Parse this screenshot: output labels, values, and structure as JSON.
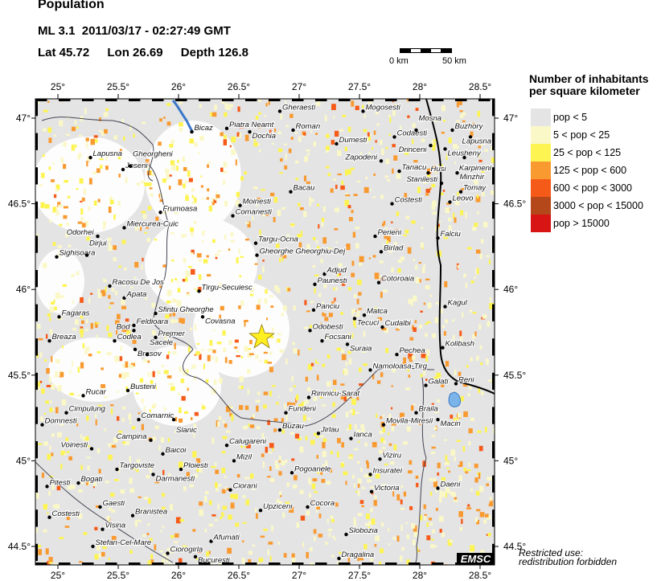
{
  "title": "Population",
  "event": {
    "magnitude": "ML 3.1",
    "datetime": "2011/03/17 - 02:27:49 GMT",
    "lat_label": "Lat 45.72",
    "lon_label": "Lon  26.69",
    "depth_label": "Depth 126.8",
    "lat": 45.72,
    "lon": 26.69
  },
  "scale": {
    "start_label": "0 km",
    "end_label": "50 km"
  },
  "map": {
    "lon_range": [
      24.81,
      28.62
    ],
    "lat_range": [
      44.39,
      47.11
    ],
    "lon_ticks": [
      "25°",
      "25.5°",
      "26°",
      "26.5°",
      "27°",
      "27.5°",
      "28°",
      "28.5°"
    ],
    "lon_tick_values": [
      25,
      25.5,
      26,
      26.5,
      27,
      27.5,
      28,
      28.5
    ],
    "lat_ticks": [
      "47°",
      "46.5°",
      "46°",
      "45.5°",
      "45°",
      "44.5°"
    ],
    "lat_tick_values": [
      47,
      46.5,
      46,
      45.5,
      45,
      44.5
    ],
    "epicenter_marker": "star-icon",
    "epicenter_color": "#ffee22",
    "cities": [
      {
        "name": "Lapusna",
        "lon": 25.27,
        "lat": 46.77
      },
      {
        "name": "Joseni",
        "lon": 25.54,
        "lat": 46.7
      },
      {
        "name": "Gheorgheni",
        "lon": 25.6,
        "lat": 46.72
      },
      {
        "name": "Bicaz",
        "lon": 26.11,
        "lat": 46.92
      },
      {
        "name": "Piatra Neamt",
        "lon": 26.4,
        "lat": 46.94
      },
      {
        "name": "Dochia",
        "lon": 26.59,
        "lat": 46.92
      },
      {
        "name": "Gheraesti",
        "lon": 26.84,
        "lat": 47.04
      },
      {
        "name": "Roman",
        "lon": 26.95,
        "lat": 46.93
      },
      {
        "name": "Mogosesti",
        "lon": 27.53,
        "lat": 47.04
      },
      {
        "name": "Dumesti",
        "lon": 27.31,
        "lat": 46.85
      },
      {
        "name": "Codaesti",
        "lon": 27.79,
        "lat": 46.89
      },
      {
        "name": "Mosna",
        "lon": 27.97,
        "lat": 46.93
      },
      {
        "name": "Buzhory",
        "lon": 28.27,
        "lat": 46.93
      },
      {
        "name": "Lapusna",
        "lon": 28.42,
        "lat": 46.89
      },
      {
        "name": "Drinceni",
        "lon": 28.09,
        "lat": 46.84
      },
      {
        "name": "Leusheny",
        "lon": 28.21,
        "lat": 46.82
      },
      {
        "name": "Karpineni",
        "lon": 28.37,
        "lat": 46.77
      },
      {
        "name": "Zapodeni",
        "lon": 27.68,
        "lat": 46.75
      },
      {
        "name": "Tanacu",
        "lon": 27.83,
        "lat": 46.69
      },
      {
        "name": "Husi",
        "lon": 28.07,
        "lat": 46.68
      },
      {
        "name": "Minzhir",
        "lon": 28.31,
        "lat": 46.68
      },
      {
        "name": "Stanilesti",
        "lon": 28.18,
        "lat": 46.62
      },
      {
        "name": "Tomay",
        "lon": 28.34,
        "lat": 46.57
      },
      {
        "name": "Leovo",
        "lon": 28.25,
        "lat": 46.51
      },
      {
        "name": "Frumoasa",
        "lon": 25.85,
        "lat": 46.45
      },
      {
        "name": "Moinesti",
        "lon": 26.51,
        "lat": 46.49
      },
      {
        "name": "Comanesti",
        "lon": 26.45,
        "lat": 46.43
      },
      {
        "name": "Bacau",
        "lon": 26.93,
        "lat": 46.57
      },
      {
        "name": "Costesti",
        "lon": 27.77,
        "lat": 46.5
      },
      {
        "name": "Miercurea-Cuic",
        "lon": 25.55,
        "lat": 46.36
      },
      {
        "name": "Odorhei",
        "lon": 25.33,
        "lat": 46.31
      },
      {
        "name": "Sighisoara",
        "lon": 24.99,
        "lat": 46.19
      },
      {
        "name": "Dirjui",
        "lon": 25.24,
        "lat": 46.2
      },
      {
        "name": "Targu-Ocna",
        "lon": 26.64,
        "lat": 46.27
      },
      {
        "name": "Gheorghe Gheorghiu-Dej",
        "lon": 26.65,
        "lat": 46.2
      },
      {
        "name": "Perieni",
        "lon": 27.63,
        "lat": 46.31
      },
      {
        "name": "Birlad",
        "lon": 27.68,
        "lat": 46.22
      },
      {
        "name": "Falciu",
        "lon": 28.15,
        "lat": 46.3
      },
      {
        "name": "Adjud",
        "lon": 27.21,
        "lat": 46.09
      },
      {
        "name": "Paunesti",
        "lon": 27.13,
        "lat": 46.03
      },
      {
        "name": "Cotoroaia",
        "lon": 27.66,
        "lat": 46.04
      },
      {
        "name": "Racosu De Jos",
        "lon": 25.43,
        "lat": 46.02
      },
      {
        "name": "Apata",
        "lon": 25.55,
        "lat": 45.95
      },
      {
        "name": "Tirgu-Secuiesc",
        "lon": 26.17,
        "lat": 45.99
      },
      {
        "name": "Sfintu Gheorghe",
        "lon": 25.81,
        "lat": 45.86
      },
      {
        "name": "Covasna",
        "lon": 26.2,
        "lat": 45.84
      },
      {
        "name": "Fagaras",
        "lon": 25.01,
        "lat": 45.84
      },
      {
        "name": "Feldioara",
        "lon": 25.63,
        "lat": 45.79
      },
      {
        "name": "Bod",
        "lon": 25.63,
        "lat": 45.76
      },
      {
        "name": "Prejmer",
        "lon": 25.81,
        "lat": 45.72
      },
      {
        "name": "Panciu",
        "lon": 27.12,
        "lat": 45.88
      },
      {
        "name": "Matca",
        "lon": 27.54,
        "lat": 45.85
      },
      {
        "name": "Tecuci",
        "lon": 27.46,
        "lat": 45.83
      },
      {
        "name": "Kagul",
        "lon": 28.21,
        "lat": 45.9
      },
      {
        "name": "Breaza",
        "lon": 24.93,
        "lat": 45.7
      },
      {
        "name": "Codlea",
        "lon": 25.47,
        "lat": 45.7
      },
      {
        "name": "Brasov",
        "lon": 25.64,
        "lat": 45.65
      },
      {
        "name": "Sacele",
        "lon": 25.74,
        "lat": 45.62
      },
      {
        "name": "Odobesti",
        "lon": 27.09,
        "lat": 45.76
      },
      {
        "name": "Focsani",
        "lon": 27.19,
        "lat": 45.7
      },
      {
        "name": "Suraia",
        "lon": 27.4,
        "lat": 45.68
      },
      {
        "name": "Cudalbi",
        "lon": 27.69,
        "lat": 45.78
      },
      {
        "name": "Kolibash",
        "lon": 28.19,
        "lat": 45.66
      },
      {
        "name": "Pechea",
        "lon": 27.81,
        "lat": 45.62
      },
      {
        "name": "Namoloasa-Tirg",
        "lon": 27.59,
        "lat": 45.53
      },
      {
        "name": "Galati",
        "lon": 28.05,
        "lat": 45.44
      },
      {
        "name": "Reni",
        "lon": 28.3,
        "lat": 45.45
      },
      {
        "name": "Busteni",
        "lon": 25.58,
        "lat": 45.41
      },
      {
        "name": "Rucar",
        "lon": 25.21,
        "lat": 45.38
      },
      {
        "name": "Rimnicu-Sarat",
        "lon": 27.08,
        "lat": 45.37
      },
      {
        "name": "Cimpulung",
        "lon": 25.07,
        "lat": 45.28
      },
      {
        "name": "Domnesti",
        "lon": 24.87,
        "lat": 45.21
      },
      {
        "name": "Comarnic",
        "lon": 25.67,
        "lat": 45.24
      },
      {
        "name": "Slanic",
        "lon": 25.96,
        "lat": 45.24
      },
      {
        "name": "Fundeni",
        "lon": 26.89,
        "lat": 45.28
      },
      {
        "name": "Braila",
        "lon": 27.97,
        "lat": 45.28
      },
      {
        "name": "Movila-Miresii",
        "lon": 27.7,
        "lat": 45.21
      },
      {
        "name": "Macin",
        "lon": 28.15,
        "lat": 45.24
      },
      {
        "name": "Campina",
        "lon": 25.77,
        "lat": 45.12
      },
      {
        "name": "Buzau",
        "lon": 26.84,
        "lat": 45.18
      },
      {
        "name": "Jirlau",
        "lon": 27.16,
        "lat": 45.16
      },
      {
        "name": "Ianca",
        "lon": 27.43,
        "lat": 45.13
      },
      {
        "name": "Calugareni",
        "lon": 26.4,
        "lat": 45.09
      },
      {
        "name": "Voinesti",
        "lon": 25.28,
        "lat": 45.07
      },
      {
        "name": "Baicoi",
        "lon": 25.87,
        "lat": 45.04
      },
      {
        "name": "Mizil",
        "lon": 26.46,
        "lat": 45.0
      },
      {
        "name": "Viziru",
        "lon": 27.67,
        "lat": 45.01
      },
      {
        "name": "Targoviste",
        "lon": 25.49,
        "lat": 44.95
      },
      {
        "name": "Darmanesti",
        "lon": 25.79,
        "lat": 44.92
      },
      {
        "name": "Ploiesti",
        "lon": 26.02,
        "lat": 44.95
      },
      {
        "name": "Pogoanele",
        "lon": 26.94,
        "lat": 44.93
      },
      {
        "name": "Insuratei",
        "lon": 27.59,
        "lat": 44.92
      },
      {
        "name": "Pitesti",
        "lon": 24.91,
        "lat": 44.85
      },
      {
        "name": "Bogati",
        "lon": 25.17,
        "lat": 44.87
      },
      {
        "name": "Ciorani",
        "lon": 26.43,
        "lat": 44.83
      },
      {
        "name": "Daeni",
        "lon": 28.15,
        "lat": 44.84
      },
      {
        "name": "Victoria",
        "lon": 27.6,
        "lat": 44.82
      },
      {
        "name": "Gaesti",
        "lon": 25.35,
        "lat": 44.73
      },
      {
        "name": "Costesti",
        "lon": 24.93,
        "lat": 44.67
      },
      {
        "name": "Branistea",
        "lon": 25.62,
        "lat": 44.68
      },
      {
        "name": "Cocora",
        "lon": 27.07,
        "lat": 44.73
      },
      {
        "name": "Upziceni",
        "lon": 26.68,
        "lat": 44.71
      },
      {
        "name": "Visina",
        "lon": 25.37,
        "lat": 44.6
      },
      {
        "name": "Slobozia",
        "lon": 27.39,
        "lat": 44.57
      },
      {
        "name": "Stefan-Cel-Mare",
        "lon": 25.29,
        "lat": 44.5
      },
      {
        "name": "Afumati",
        "lon": 26.27,
        "lat": 44.53
      },
      {
        "name": "Ciorogirla",
        "lon": 25.91,
        "lat": 44.46
      },
      {
        "name": "Bucuresti",
        "lon": 26.14,
        "lat": 44.44
      },
      {
        "name": "Dragalina",
        "lon": 27.33,
        "lat": 44.43
      }
    ]
  },
  "legend": {
    "title_line1": "Number of inhabitants",
    "title_line2": "per square kilometer",
    "items": [
      {
        "label": "pop < 5",
        "color": "#e4e4e4"
      },
      {
        "label": "5 < pop < 25",
        "color": "#fbf8c8"
      },
      {
        "label": "25 < pop < 125",
        "color": "#fdf452"
      },
      {
        "label": "125 < pop < 600",
        "color": "#f99a30"
      },
      {
        "label": "600 < pop < 3000",
        "color": "#f65a18"
      },
      {
        "label": "3000 < pop < 15000",
        "color": "#b4481a"
      },
      {
        "label": "pop > 15000",
        "color": "#d81414"
      }
    ]
  },
  "footer": {
    "restricted_line1": "Restricted use:",
    "restricted_line2": "redistribution forbidden",
    "logo": "EMSC"
  }
}
